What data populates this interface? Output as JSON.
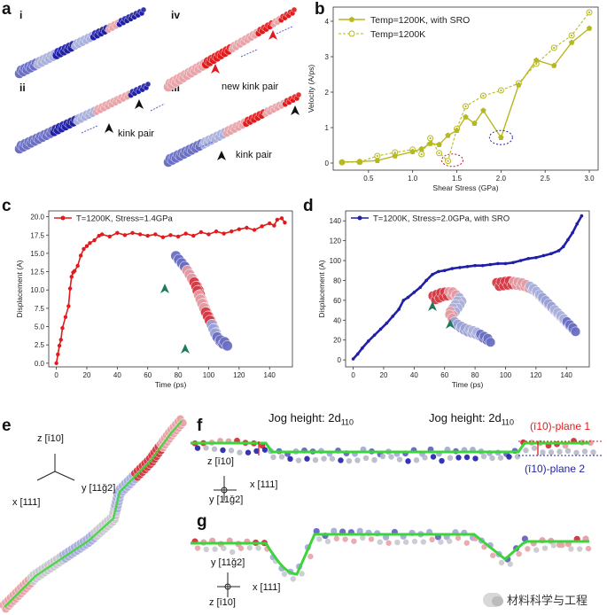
{
  "panels": {
    "a": {
      "letter": "a",
      "sub": [
        "i",
        "ii",
        "iii",
        "iv"
      ],
      "kink_pair_label": "kink pair",
      "new_kink_pair_label": "new kink pair"
    },
    "b": {
      "letter": "b"
    },
    "c": {
      "letter": "c"
    },
    "d": {
      "letter": "d"
    },
    "e": {
      "letter": "e",
      "axis_z": "z [ī10]",
      "axis_y": "y [11ǧ2]",
      "axis_x": "x [111]"
    },
    "f": {
      "letter": "f",
      "jog_label_1": "Jog height: 2d",
      "jog_label_2": "Jog height: 2d",
      "jog_sub": "110",
      "plane_1": "(ī10)-plane 1",
      "plane_2": "(ī10)-plane 2",
      "axis_z": "z [ī10]",
      "axis_x": "x [111]",
      "axis_y": "y [11ǧ2]"
    },
    "g": {
      "letter": "g",
      "axis_y": "y [11ǧ2]",
      "axis_x": "x [111]",
      "axis_z": "z [ī10]"
    }
  },
  "colors": {
    "red": "#e31a1c",
    "blue": "#1f1fa8",
    "olive": "#b7b81e",
    "green": "#3bd43b",
    "lightred": "#e8a3a8",
    "lightblue": "#aab0dc",
    "tealarrow": "#1f7a5a"
  },
  "watermark": {
    "text": "材料科学与工程"
  },
  "chart_data": [
    {
      "id": "b",
      "type": "line",
      "xlabel": "Shear Stress (GPa)",
      "ylabel": "Velocity (A/ps)",
      "xlim": [
        0.1,
        3.1
      ],
      "ylim": [
        -0.2,
        4.4
      ],
      "xticks": [
        "0.5",
        "1.0",
        "1.5",
        "2.0",
        "2.5",
        "3.0"
      ],
      "yticks": [
        "0",
        "1",
        "2",
        "3",
        "4"
      ],
      "legend_placement": "top-left",
      "series": [
        {
          "name": "Temp=1200K, with SRO",
          "style": "solid-filled",
          "x": [
            0.2,
            0.4,
            0.6,
            0.8,
            1.0,
            1.1,
            1.2,
            1.3,
            1.4,
            1.5,
            1.6,
            1.7,
            1.8,
            2.0,
            2.2,
            2.4,
            2.6,
            2.8,
            3.0
          ],
          "y": [
            0.03,
            0.04,
            0.07,
            0.2,
            0.32,
            0.4,
            0.55,
            0.52,
            0.78,
            0.92,
            1.3,
            1.12,
            1.48,
            0.72,
            2.2,
            2.9,
            2.75,
            3.4,
            3.8
          ]
        },
        {
          "name": "Temp=1200K",
          "style": "dashed-open",
          "x": [
            0.2,
            0.4,
            0.6,
            0.8,
            1.0,
            1.1,
            1.2,
            1.3,
            1.4,
            1.5,
            1.6,
            1.8,
            2.0,
            2.2,
            2.4,
            2.6,
            2.8,
            3.0
          ],
          "y": [
            0.02,
            0.03,
            0.2,
            0.3,
            0.38,
            0.25,
            0.7,
            0.28,
            0.06,
            0.97,
            1.6,
            1.9,
            2.05,
            2.25,
            2.8,
            3.25,
            3.6,
            4.25
          ]
        }
      ]
    },
    {
      "id": "c",
      "type": "line",
      "xlabel": "Time (ps)",
      "ylabel": "Displacement (A)",
      "xlim": [
        -5,
        155
      ],
      "ylim": [
        -0.5,
        20.8
      ],
      "xticks": [
        "0",
        "20",
        "40",
        "60",
        "80",
        "100",
        "120",
        "140"
      ],
      "yticks": [
        "0.0",
        "2.5",
        "5.0",
        "7.5",
        "10.0",
        "12.5",
        "15.0",
        "17.5",
        "20.0"
      ],
      "legend_placement": "top-left",
      "series": [
        {
          "name": "T=1200K, Stress=1.4GPa",
          "x": [
            0,
            1,
            2,
            3,
            4,
            6,
            8,
            9,
            10,
            11,
            12,
            14,
            16,
            18,
            20,
            22,
            25,
            28,
            30,
            35,
            40,
            45,
            50,
            55,
            60,
            65,
            70,
            75,
            80,
            85,
            90,
            95,
            100,
            105,
            110,
            115,
            120,
            125,
            130,
            135,
            140,
            143,
            145,
            148,
            150
          ],
          "y": [
            0,
            1.2,
            2.4,
            3.2,
            4.8,
            6.3,
            7.8,
            10.2,
            11.8,
            12.4,
            12.6,
            13.3,
            14.7,
            15.6,
            16.0,
            16.4,
            16.8,
            17.4,
            17.6,
            17.3,
            17.8,
            17.5,
            17.8,
            17.6,
            17.4,
            17.6,
            17.2,
            17.5,
            17.3,
            17.7,
            17.4,
            17.9,
            17.6,
            18.0,
            17.7,
            18.0,
            18.3,
            18.5,
            18.2,
            18.7,
            19.1,
            18.8,
            19.6,
            19.8,
            19.2
          ]
        }
      ]
    },
    {
      "id": "d",
      "type": "line",
      "xlabel": "Time (ps)",
      "ylabel": "Displacement (A)",
      "xlim": [
        -5,
        155
      ],
      "ylim": [
        -7,
        150
      ],
      "xticks": [
        "0",
        "20",
        "40",
        "60",
        "80",
        "100",
        "120",
        "140"
      ],
      "yticks": [
        "0",
        "20",
        "40",
        "60",
        "80",
        "100",
        "120",
        "140"
      ],
      "legend_placement": "top-left",
      "series": [
        {
          "name": "T=1200K, Stress=2.0GPa, with SRO",
          "x": [
            0,
            3,
            6,
            10,
            14,
            18,
            22,
            26,
            30,
            33,
            36,
            40,
            44,
            48,
            52,
            56,
            60,
            65,
            70,
            75,
            80,
            85,
            90,
            95,
            100,
            105,
            110,
            115,
            120,
            125,
            130,
            135,
            138,
            141,
            144,
            147,
            150
          ],
          "y": [
            1,
            6,
            12,
            19,
            25,
            31,
            37,
            44,
            51,
            60,
            63,
            68,
            73,
            80,
            86,
            89,
            90,
            92,
            93,
            94,
            95,
            95,
            96,
            97,
            97,
            98,
            100,
            102,
            103,
            105,
            107,
            110,
            114,
            121,
            128,
            137,
            145
          ]
        }
      ]
    }
  ]
}
